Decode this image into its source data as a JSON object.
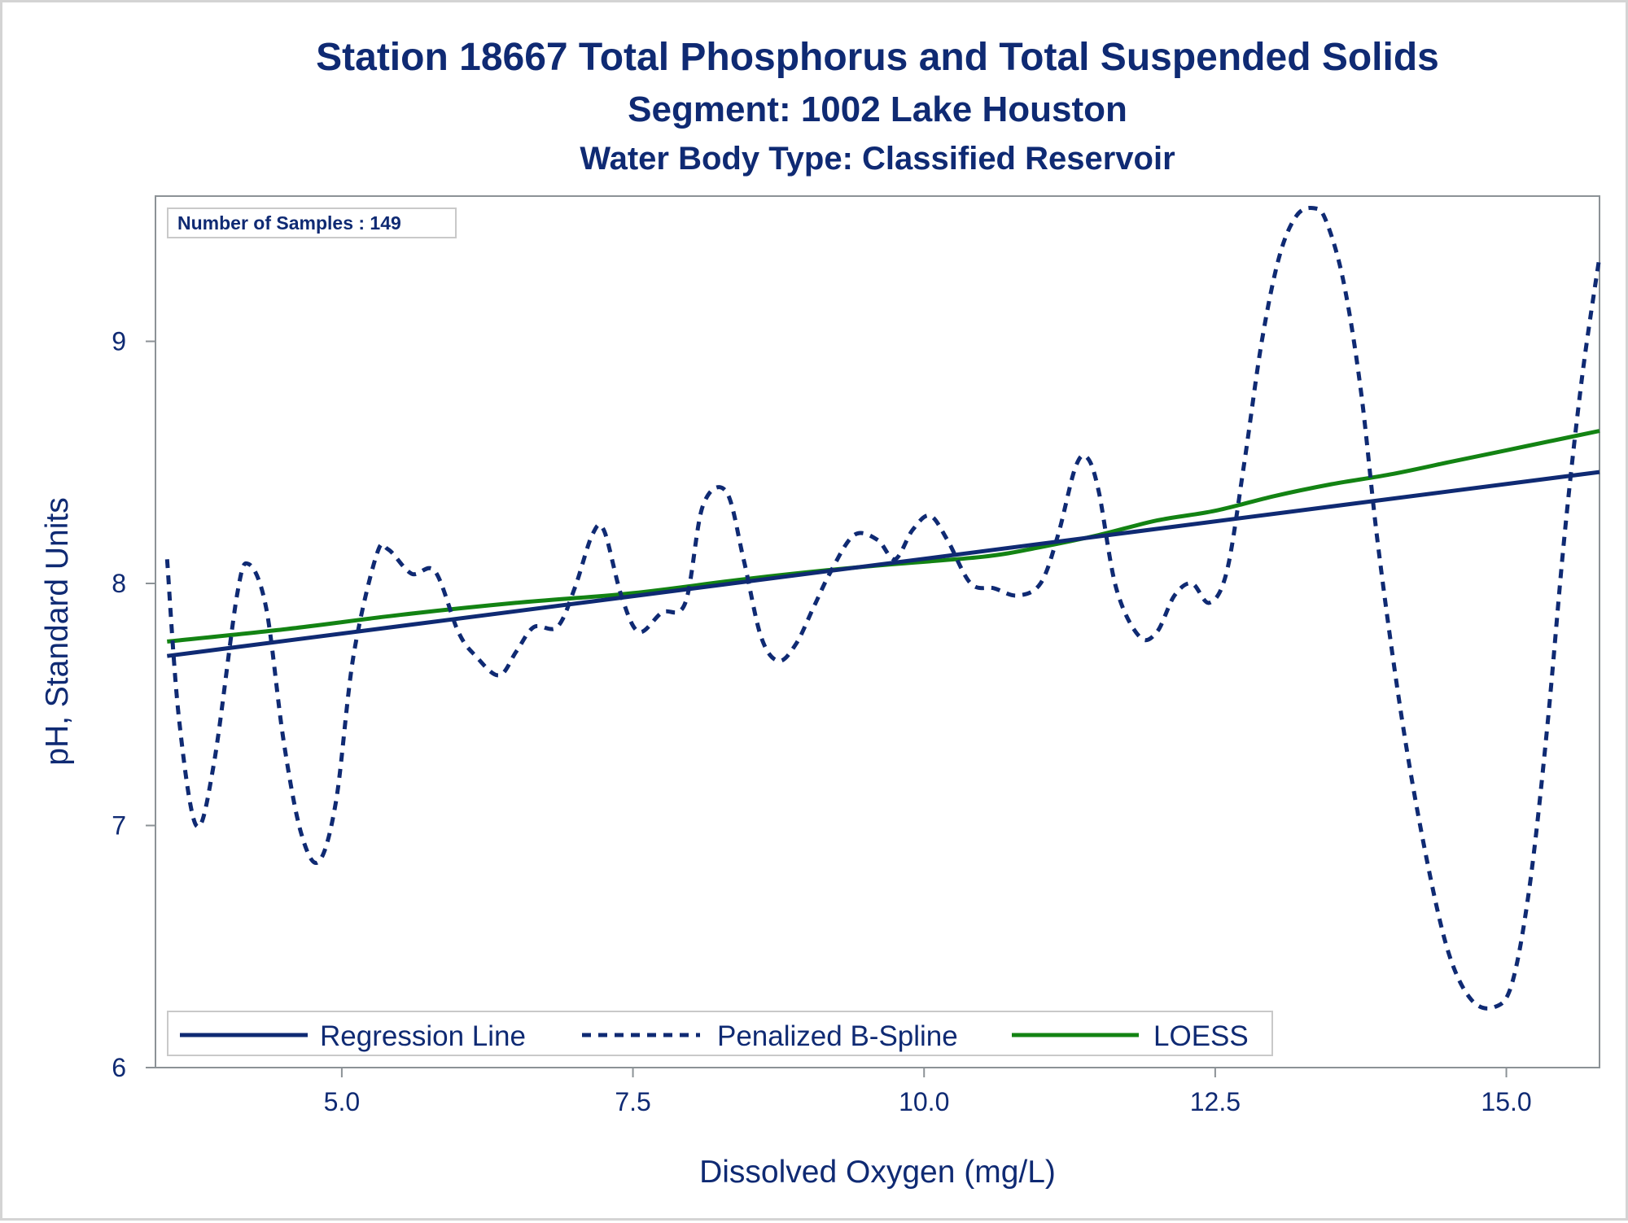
{
  "chart_data": {
    "type": "line",
    "title": "Station 18667  Total Phosphorus and Total Suspended Solids",
    "subtitle": "Segment: 1002  Lake Houston",
    "subtitle2": "Water Body Type: Classified Reservoir",
    "xlabel": "Dissolved Oxygen (mg/L)",
    "ylabel": "pH, Standard Units",
    "xlim": [
      3.4,
      15.8
    ],
    "ylim": [
      6.0,
      9.6
    ],
    "xticks": [
      5.0,
      7.5,
      10.0,
      12.5,
      15.0
    ],
    "xtick_labels": [
      "5.0",
      "7.5",
      "10.0",
      "12.5",
      "15.0"
    ],
    "yticks": [
      6,
      7,
      8,
      9
    ],
    "ytick_labels": [
      "6",
      "7",
      "8",
      "9"
    ],
    "grid": false,
    "inset_text": "Number of Samples : 149",
    "legend_position": "bottom-left inside",
    "series": [
      {
        "name": "Regression Line",
        "color": "#0f2a73",
        "style": "solid",
        "x": [
          3.5,
          15.8
        ],
        "y": [
          7.7,
          8.46
        ]
      },
      {
        "name": "Penalized B-Spline",
        "color": "#0f2a73",
        "style": "dashed",
        "x": [
          3.5,
          3.6,
          3.75,
          3.9,
          4.1,
          4.2,
          4.35,
          4.5,
          4.65,
          4.8,
          4.95,
          5.1,
          5.3,
          5.4,
          5.6,
          5.8,
          6.0,
          6.15,
          6.35,
          6.5,
          6.65,
          6.85,
          7.0,
          7.15,
          7.25,
          7.4,
          7.55,
          7.75,
          7.95,
          8.1,
          8.3,
          8.45,
          8.6,
          8.75,
          8.9,
          9.05,
          9.2,
          9.4,
          9.6,
          9.75,
          9.9,
          10.05,
          10.2,
          10.4,
          10.6,
          10.8,
          11.0,
          11.15,
          11.3,
          11.4,
          11.5,
          11.65,
          11.85,
          12.0,
          12.15,
          12.3,
          12.45,
          12.6,
          12.75,
          12.9,
          13.05,
          13.2,
          13.35,
          13.45,
          13.6,
          13.75,
          13.9,
          14.1,
          14.3,
          14.5,
          14.7,
          14.9,
          15.05,
          15.2,
          15.35,
          15.5,
          15.65,
          15.8
        ],
        "y": [
          8.1,
          7.45,
          7.0,
          7.25,
          7.95,
          8.08,
          7.9,
          7.35,
          6.97,
          6.85,
          7.1,
          7.7,
          8.12,
          8.14,
          8.04,
          8.05,
          7.8,
          7.7,
          7.62,
          7.72,
          7.82,
          7.82,
          7.98,
          8.2,
          8.22,
          7.95,
          7.8,
          7.88,
          7.92,
          8.32,
          8.38,
          8.1,
          7.78,
          7.68,
          7.75,
          7.9,
          8.05,
          8.2,
          8.18,
          8.1,
          8.22,
          8.28,
          8.18,
          8.0,
          7.98,
          7.95,
          8.0,
          8.2,
          8.48,
          8.52,
          8.38,
          7.98,
          7.78,
          7.8,
          7.95,
          8.0,
          7.92,
          8.05,
          8.5,
          9.0,
          9.35,
          9.52,
          9.55,
          9.5,
          9.25,
          8.8,
          8.15,
          7.45,
          6.9,
          6.48,
          6.28,
          6.25,
          6.35,
          6.75,
          7.4,
          8.2,
          8.85,
          9.35
        ]
      },
      {
        "name": "LOESS",
        "color": "#138313",
        "style": "solid",
        "x": [
          3.5,
          4.5,
          5.5,
          6.5,
          7.5,
          8.5,
          9.5,
          10.5,
          11.0,
          11.5,
          12.0,
          12.5,
          13.0,
          13.5,
          14.0,
          14.5,
          15.0,
          15.5,
          15.8
        ],
        "y": [
          7.76,
          7.81,
          7.87,
          7.92,
          7.96,
          8.02,
          8.07,
          8.11,
          8.15,
          8.2,
          8.26,
          8.3,
          8.36,
          8.41,
          8.45,
          8.5,
          8.55,
          8.6,
          8.63
        ]
      }
    ]
  }
}
